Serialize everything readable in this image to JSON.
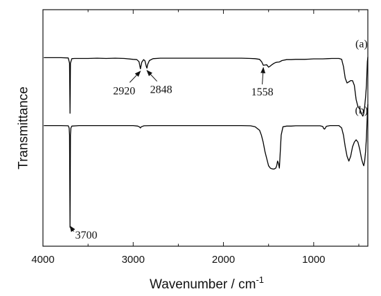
{
  "chart_data": {
    "type": "line",
    "xlabel": "Wavenumber / cm",
    "xlabel_sup": "-1",
    "ylabel": "Transmittance",
    "xlim": [
      4000,
      400
    ],
    "ylim": [
      0,
      1
    ],
    "x_ticks": [
      4000,
      3000,
      2000,
      1000
    ],
    "x_reversed": true,
    "y_tick_labels": false,
    "grid": false,
    "legend": "none",
    "series": [
      {
        "name": "(a)",
        "color": "#000000",
        "x": [
          3990,
          3800,
          3720,
          3705,
          3700,
          3695,
          3680,
          3650,
          3600,
          3500,
          3400,
          3300,
          3200,
          3100,
          3000,
          2960,
          2935,
          2920,
          2905,
          2885,
          2870,
          2855,
          2848,
          2840,
          2820,
          2780,
          2700,
          2600,
          2500,
          2400,
          2300,
          2200,
          2100,
          2000,
          1900,
          1800,
          1700,
          1650,
          1600,
          1575,
          1558,
          1540,
          1520,
          1500,
          1480,
          1460,
          1440,
          1420,
          1400,
          1380,
          1350,
          1300,
          1250,
          1200,
          1150,
          1100,
          1050,
          1000,
          950,
          900,
          850,
          800,
          750,
          720,
          690,
          670,
          650,
          630,
          610,
          590,
          570,
          550,
          530,
          510,
          490,
          470,
          455,
          445,
          435,
          425,
          415,
          405,
          400
        ],
        "y": [
          0.797,
          0.797,
          0.796,
          0.774,
          0.562,
          0.774,
          0.793,
          0.794,
          0.794,
          0.794,
          0.795,
          0.794,
          0.795,
          0.794,
          0.79,
          0.789,
          0.78,
          0.75,
          0.778,
          0.789,
          0.784,
          0.76,
          0.753,
          0.768,
          0.785,
          0.793,
          0.795,
          0.795,
          0.795,
          0.795,
          0.795,
          0.795,
          0.795,
          0.795,
          0.795,
          0.795,
          0.794,
          0.793,
          0.79,
          0.779,
          0.765,
          0.766,
          0.767,
          0.757,
          0.762,
          0.768,
          0.773,
          0.777,
          0.778,
          0.779,
          0.785,
          0.789,
          0.789,
          0.79,
          0.79,
          0.79,
          0.791,
          0.792,
          0.792,
          0.792,
          0.793,
          0.794,
          0.794,
          0.794,
          0.79,
          0.76,
          0.71,
          0.69,
          0.695,
          0.7,
          0.7,
          0.68,
          0.62,
          0.59,
          0.58,
          0.56,
          0.55,
          0.56,
          0.59,
          0.63,
          0.68,
          0.78,
          0.8
        ]
      },
      {
        "name": "(b)",
        "color": "#000000",
        "x": [
          3990,
          3800,
          3720,
          3710,
          3705,
          3700,
          3695,
          3690,
          3680,
          3600,
          3500,
          3400,
          3300,
          3200,
          3100,
          3000,
          2950,
          2930,
          2920,
          2910,
          2880,
          2800,
          2700,
          2600,
          2500,
          2400,
          2300,
          2200,
          2100,
          2000,
          1900,
          1800,
          1700,
          1650,
          1600,
          1580,
          1560,
          1540,
          1520,
          1500,
          1480,
          1460,
          1440,
          1420,
          1410,
          1400,
          1390,
          1380,
          1370,
          1360,
          1340,
          1300,
          1250,
          1200,
          1100,
          1000,
          930,
          900,
          890,
          880,
          870,
          860,
          820,
          760,
          720,
          690,
          670,
          650,
          630,
          610,
          590,
          570,
          550,
          530,
          510,
          490,
          470,
          455,
          445,
          435,
          425,
          415,
          405,
          400
        ],
        "y": [
          0.51,
          0.51,
          0.509,
          0.5,
          0.47,
          0.08,
          0.47,
          0.5,
          0.508,
          0.51,
          0.51,
          0.51,
          0.51,
          0.51,
          0.51,
          0.51,
          0.508,
          0.504,
          0.5,
          0.505,
          0.509,
          0.51,
          0.51,
          0.51,
          0.51,
          0.51,
          0.51,
          0.51,
          0.51,
          0.51,
          0.51,
          0.51,
          0.509,
          0.505,
          0.49,
          0.47,
          0.44,
          0.4,
          0.37,
          0.34,
          0.33,
          0.327,
          0.326,
          0.33,
          0.34,
          0.36,
          0.35,
          0.33,
          0.4,
          0.47,
          0.505,
          0.508,
          0.508,
          0.509,
          0.509,
          0.509,
          0.509,
          0.506,
          0.498,
          0.495,
          0.5,
          0.507,
          0.51,
          0.51,
          0.51,
          0.5,
          0.47,
          0.42,
          0.38,
          0.36,
          0.38,
          0.42,
          0.44,
          0.45,
          0.44,
          0.41,
          0.37,
          0.35,
          0.34,
          0.36,
          0.4,
          0.46,
          0.56,
          0.6
        ]
      }
    ],
    "series_labels": [
      {
        "text": "(a)",
        "x": 470,
        "y": 0.84
      },
      {
        "text": "(b)",
        "x": 470,
        "y": 0.56
      }
    ],
    "annotations": [
      {
        "label": "2920",
        "target_x": 2920,
        "target_y": 0.74,
        "text_x": 3100,
        "text_y": 0.66
      },
      {
        "label": "2848",
        "target_x": 2848,
        "target_y": 0.743,
        "text_x": 2690,
        "text_y": 0.665
      },
      {
        "label": "1558",
        "target_x": 1558,
        "target_y": 0.755,
        "text_x": 1570,
        "text_y": 0.655
      },
      {
        "label": "3700",
        "target_x": 3700,
        "target_y": 0.085,
        "text_x": 3520,
        "text_y": 0.05
      }
    ]
  }
}
